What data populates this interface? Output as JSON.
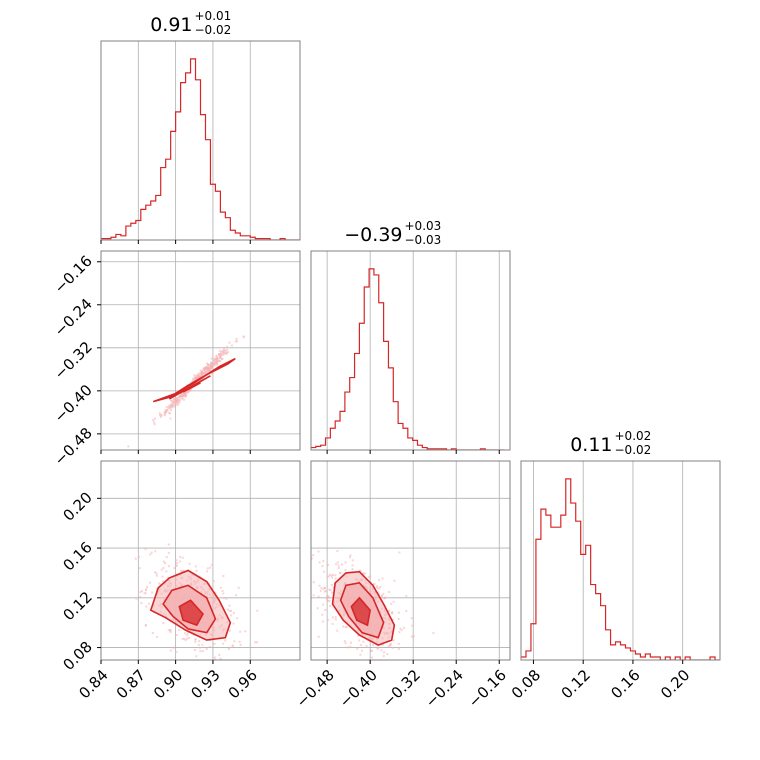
{
  "chart_data": {
    "type": "corner",
    "colors": {
      "series": "#d62728",
      "fill": "#f4b3b5",
      "grid": "#b0b0b0",
      "frame": "#808080"
    },
    "grid": true,
    "parameters": [
      {
        "title": {
          "value": "0.91",
          "plus": "+0.01",
          "minus": "−0.02"
        },
        "range": [
          0.84,
          1.0
        ],
        "ticks": [
          0.84,
          0.87,
          0.9,
          0.93,
          0.96
        ],
        "tick_labels": [
          "0.84",
          "0.87",
          "0.90",
          "0.93",
          "0.96"
        ]
      },
      {
        "title": {
          "value": "−0.39",
          "plus": "+0.03",
          "minus": "−0.03"
        },
        "range": [
          -0.51,
          -0.14
        ],
        "ticks": [
          -0.48,
          -0.4,
          -0.32,
          -0.24,
          -0.16
        ],
        "tick_labels": [
          "−0.48",
          "−0.40",
          "−0.32",
          "−0.24",
          "−0.16"
        ]
      },
      {
        "title": {
          "value": "0.11",
          "plus": "+0.02",
          "minus": "−0.02"
        },
        "range": [
          0.07,
          0.23
        ],
        "ticks": [
          0.08,
          0.12,
          0.16,
          0.2
        ],
        "tick_labels": [
          "0.08",
          "0.12",
          "0.16",
          "0.20"
        ]
      }
    ],
    "histograms": [
      {
        "bins": [
          0.84,
          0.844,
          0.848,
          0.852,
          0.856,
          0.86,
          0.864,
          0.868,
          0.872,
          0.876,
          0.88,
          0.884,
          0.888,
          0.892,
          0.896,
          0.9,
          0.904,
          0.908,
          0.912,
          0.916,
          0.92,
          0.924,
          0.928,
          0.932,
          0.936,
          0.94,
          0.944,
          0.948,
          0.952,
          0.956,
          0.96,
          0.964,
          0.968,
          0.972,
          0.976,
          0.98,
          0.984,
          0.988,
          0.992,
          0.996,
          1.0
        ],
        "counts": [
          1,
          1,
          2,
          4,
          3,
          10,
          12,
          14,
          22,
          25,
          28,
          32,
          52,
          58,
          78,
          92,
          113,
          120,
          130,
          115,
          90,
          72,
          40,
          35,
          20,
          16,
          7,
          5,
          3,
          3,
          2,
          1,
          1,
          1,
          0,
          0,
          1,
          0,
          0,
          0
        ]
      },
      {
        "bins": [
          -0.51,
          -0.501,
          -0.492,
          -0.483,
          -0.474,
          -0.465,
          -0.456,
          -0.447,
          -0.438,
          -0.429,
          -0.42,
          -0.411,
          -0.402,
          -0.393,
          -0.384,
          -0.375,
          -0.366,
          -0.357,
          -0.348,
          -0.339,
          -0.33,
          -0.321,
          -0.312,
          -0.303,
          -0.294,
          -0.285,
          -0.276,
          -0.267,
          -0.258,
          -0.249,
          -0.24,
          -0.231,
          -0.222,
          -0.213,
          -0.204,
          -0.195,
          -0.186,
          -0.177,
          -0.168,
          -0.159,
          -0.15
        ],
        "counts": [
          2,
          3,
          4,
          10,
          18,
          24,
          32,
          48,
          60,
          80,
          105,
          135,
          150,
          145,
          122,
          90,
          68,
          40,
          22,
          18,
          10,
          8,
          4,
          2,
          1,
          1,
          1,
          1,
          0,
          1,
          0,
          0,
          0,
          0,
          0,
          1,
          0,
          0,
          0,
          0
        ]
      },
      {
        "bins": [
          0.07,
          0.074,
          0.078,
          0.082,
          0.086,
          0.09,
          0.094,
          0.098,
          0.102,
          0.106,
          0.11,
          0.114,
          0.118,
          0.122,
          0.126,
          0.13,
          0.134,
          0.138,
          0.142,
          0.146,
          0.15,
          0.154,
          0.158,
          0.162,
          0.166,
          0.17,
          0.174,
          0.178,
          0.182,
          0.186,
          0.19,
          0.194,
          0.198,
          0.202,
          0.206,
          0.21,
          0.214,
          0.218,
          0.222,
          0.226,
          0.23
        ],
        "counts": [
          1,
          3,
          12,
          40,
          50,
          48,
          44,
          44,
          48,
          60,
          52,
          46,
          35,
          38,
          25,
          22,
          18,
          10,
          5,
          6,
          5,
          4,
          3,
          2,
          1,
          2,
          1,
          1,
          0,
          1,
          0,
          1,
          0,
          1,
          0,
          0,
          0,
          0,
          1,
          0
        ]
      }
    ],
    "pairs": [
      {
        "row": 1,
        "col": 0,
        "level2": [
          [
            0.882,
            -0.42
          ],
          [
            0.9,
            -0.405
          ],
          [
            0.915,
            -0.385
          ],
          [
            0.935,
            -0.355
          ],
          [
            0.948,
            -0.34
          ],
          [
            0.942,
            -0.35
          ],
          [
            0.925,
            -0.37
          ],
          [
            0.91,
            -0.39
          ],
          [
            0.895,
            -0.412
          ]
        ],
        "level1": [
          [
            0.895,
            -0.415
          ],
          [
            0.905,
            -0.402
          ],
          [
            0.918,
            -0.385
          ],
          [
            0.928,
            -0.372
          ],
          [
            0.922,
            -0.38
          ],
          [
            0.91,
            -0.395
          ],
          [
            0.898,
            -0.41
          ]
        ],
        "level0": [
          [
            0.906,
            -0.402
          ],
          [
            0.912,
            -0.395
          ],
          [
            0.92,
            -0.385
          ],
          [
            0.914,
            -0.392
          ]
        ]
      },
      {
        "row": 2,
        "col": 0,
        "level2": [
          [
            0.88,
            0.11
          ],
          [
            0.886,
            0.128
          ],
          [
            0.895,
            0.136
          ],
          [
            0.91,
            0.142
          ],
          [
            0.925,
            0.133
          ],
          [
            0.935,
            0.118
          ],
          [
            0.944,
            0.1
          ],
          [
            0.94,
            0.088
          ],
          [
            0.925,
            0.086
          ],
          [
            0.908,
            0.094
          ],
          [
            0.892,
            0.104
          ]
        ],
        "level1": [
          [
            0.89,
            0.115
          ],
          [
            0.897,
            0.126
          ],
          [
            0.91,
            0.13
          ],
          [
            0.925,
            0.12
          ],
          [
            0.932,
            0.103
          ],
          [
            0.925,
            0.092
          ],
          [
            0.91,
            0.095
          ],
          [
            0.898,
            0.105
          ]
        ],
        "level0": [
          [
            0.903,
            0.113
          ],
          [
            0.912,
            0.118
          ],
          [
            0.922,
            0.107
          ],
          [
            0.917,
            0.098
          ],
          [
            0.906,
            0.102
          ]
        ]
      },
      {
        "row": 2,
        "col": 1,
        "level2": [
          [
            -0.47,
            0.115
          ],
          [
            -0.465,
            0.132
          ],
          [
            -0.445,
            0.14
          ],
          [
            -0.42,
            0.141
          ],
          [
            -0.395,
            0.13
          ],
          [
            -0.375,
            0.115
          ],
          [
            -0.355,
            0.098
          ],
          [
            -0.36,
            0.086
          ],
          [
            -0.385,
            0.082
          ],
          [
            -0.42,
            0.09
          ],
          [
            -0.45,
            0.102
          ]
        ],
        "level1": [
          [
            -0.455,
            0.118
          ],
          [
            -0.445,
            0.13
          ],
          [
            -0.42,
            0.132
          ],
          [
            -0.395,
            0.12
          ],
          [
            -0.375,
            0.1
          ],
          [
            -0.385,
            0.088
          ],
          [
            -0.415,
            0.092
          ],
          [
            -0.44,
            0.105
          ]
        ],
        "level0": [
          [
            -0.435,
            0.113
          ],
          [
            -0.42,
            0.12
          ],
          [
            -0.4,
            0.11
          ],
          [
            -0.405,
            0.098
          ],
          [
            -0.425,
            0.102
          ]
        ]
      }
    ]
  }
}
